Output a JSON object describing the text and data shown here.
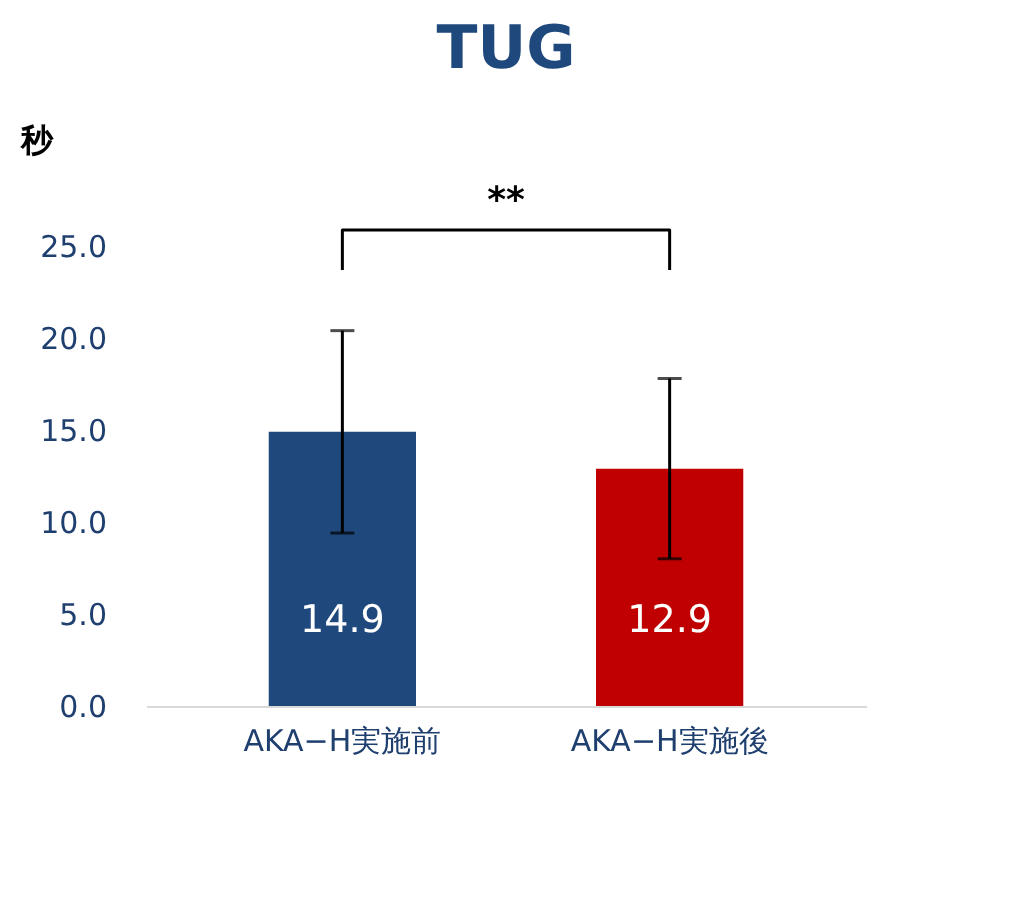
{
  "chart_data": {
    "type": "bar",
    "title": "TUG",
    "ylabel": "秒",
    "categories": [
      "AKA−H実施前",
      "AKA−H実施後"
    ],
    "values": [
      14.9,
      12.9
    ],
    "colors": [
      "#1f497d",
      "#c00000"
    ],
    "errors": [
      5.5,
      4.9
    ],
    "ylim": [
      0,
      25
    ],
    "yticks": [
      {
        "value": 0,
        "label": "0.0"
      },
      {
        "value": 5,
        "label": "5.0"
      },
      {
        "value": 10,
        "label": "10.0"
      },
      {
        "value": 15,
        "label": "15.0"
      },
      {
        "value": 20,
        "label": "20.0"
      },
      {
        "value": 25,
        "label": "25.0"
      }
    ],
    "data_labels": true,
    "grid": false,
    "annotations": [
      "**"
    ]
  }
}
